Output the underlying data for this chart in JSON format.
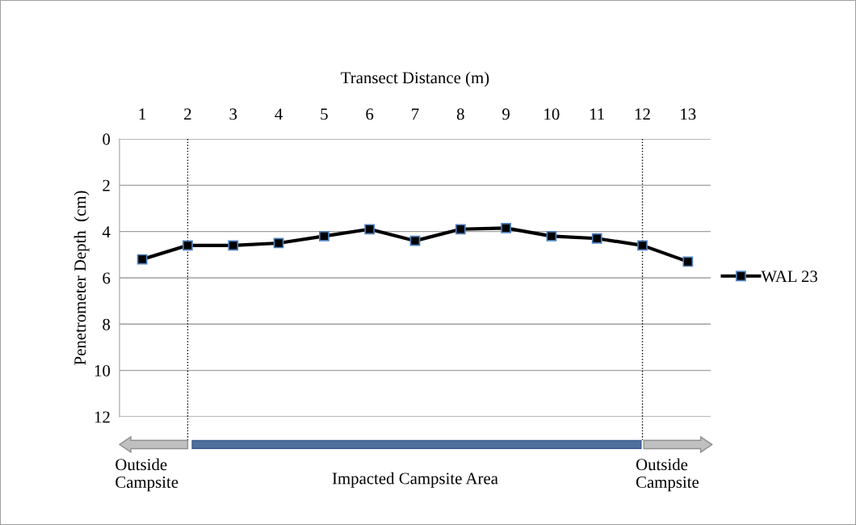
{
  "chart_data": {
    "type": "line",
    "xlabel": "Transect Distance (m)",
    "ylabel": "Penetrometer Depth  (cm)",
    "categories": [
      "1",
      "2",
      "3",
      "4",
      "5",
      "6",
      "7",
      "8",
      "9",
      "10",
      "11",
      "12",
      "13"
    ],
    "series": [
      {
        "name": "WAL 23",
        "color": "#000000",
        "values": [
          5.2,
          4.6,
          4.6,
          4.5,
          4.2,
          3.9,
          4.4,
          3.9,
          3.85,
          4.2,
          4.3,
          4.6,
          5.3
        ]
      }
    ],
    "ylim": [
      12,
      0
    ],
    "yticks": [
      0,
      2,
      4,
      6,
      8,
      10,
      12
    ],
    "grid": "y",
    "legend": "right",
    "marker": "square",
    "line_style": "solid",
    "ref_lines": [
      {
        "axis": "x",
        "value": "2",
        "line_style": "dotted",
        "color": "#000000"
      },
      {
        "axis": "x",
        "value": "12",
        "line_style": "dotted",
        "color": "#000000"
      }
    ],
    "annotations": [
      "Outside\nCampsite",
      "Impacted Campsite Area",
      "Outside\nCampsite"
    ]
  }
}
